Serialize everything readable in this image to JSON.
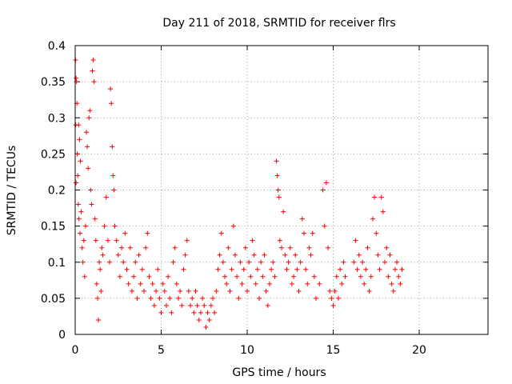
{
  "chart_data": {
    "type": "scatter",
    "title": "Day 211 of 2018, SRMTID for receiver flrs",
    "xlabel": "GPS time / hours",
    "ylabel": "SRMTID / TECUs",
    "xlim": [
      0,
      24
    ],
    "ylim": [
      0,
      0.4
    ],
    "xticks": [
      0,
      5,
      10,
      15,
      20
    ],
    "yticks": [
      0,
      0.05,
      0.1,
      0.15,
      0.2,
      0.25,
      0.3,
      0.35,
      0.4
    ],
    "xtick_labels": [
      "0",
      "5",
      "10",
      "15",
      "20"
    ],
    "ytick_labels": [
      "0",
      "0.05",
      "0.1",
      "0.15",
      "0.2",
      "0.25",
      "0.3",
      "0.35",
      "0.4"
    ],
    "grid": true,
    "marker": "+",
    "color": "#ff0000",
    "series": [
      {
        "points": [
          [
            0.02,
            0.38
          ],
          [
            0.05,
            0.355
          ],
          [
            0.08,
            0.35
          ],
          [
            0.03,
            0.29
          ],
          [
            0.1,
            0.32
          ],
          [
            0.12,
            0.25
          ],
          [
            0.15,
            0.22
          ],
          [
            0.05,
            0.21
          ],
          [
            0.2,
            0.29
          ],
          [
            0.25,
            0.27
          ],
          [
            0.3,
            0.24
          ],
          [
            0.18,
            0.18
          ],
          [
            0.22,
            0.16
          ],
          [
            0.28,
            0.14
          ],
          [
            0.35,
            0.17
          ],
          [
            0.4,
            0.12
          ],
          [
            0.45,
            0.1
          ],
          [
            0.5,
            0.13
          ],
          [
            0.55,
            0.08
          ],
          [
            0.6,
            0.15
          ],
          [
            0.65,
            0.28
          ],
          [
            0.7,
            0.26
          ],
          [
            0.75,
            0.23
          ],
          [
            0.8,
            0.3
          ],
          [
            0.85,
            0.31
          ],
          [
            0.9,
            0.2
          ],
          [
            0.95,
            0.18
          ],
          [
            1.0,
            0.365
          ],
          [
            1.05,
            0.38
          ],
          [
            1.1,
            0.35
          ],
          [
            1.15,
            0.16
          ],
          [
            1.2,
            0.13
          ],
          [
            1.25,
            0.07
          ],
          [
            1.3,
            0.05
          ],
          [
            1.35,
            0.02
          ],
          [
            1.4,
            0.1
          ],
          [
            1.45,
            0.09
          ],
          [
            1.5,
            0.06
          ],
          [
            1.55,
            0.12
          ],
          [
            1.6,
            0.11
          ],
          [
            1.7,
            0.15
          ],
          [
            1.8,
            0.19
          ],
          [
            1.9,
            0.13
          ],
          [
            2.0,
            0.1
          ],
          [
            2.05,
            0.34
          ],
          [
            2.1,
            0.32
          ],
          [
            2.15,
            0.26
          ],
          [
            2.2,
            0.22
          ],
          [
            2.25,
            0.2
          ],
          [
            2.3,
            0.15
          ],
          [
            2.4,
            0.13
          ],
          [
            2.5,
            0.11
          ],
          [
            2.6,
            0.08
          ],
          [
            2.7,
            0.12
          ],
          [
            2.8,
            0.1
          ],
          [
            2.9,
            0.14
          ],
          [
            3.0,
            0.09
          ],
          [
            3.1,
            0.07
          ],
          [
            3.2,
            0.12
          ],
          [
            3.3,
            0.06
          ],
          [
            3.4,
            0.08
          ],
          [
            3.5,
            0.1
          ],
          [
            3.6,
            0.05
          ],
          [
            3.7,
            0.11
          ],
          [
            3.8,
            0.07
          ],
          [
            3.9,
            0.09
          ],
          [
            4.0,
            0.06
          ],
          [
            4.1,
            0.12
          ],
          [
            4.2,
            0.14
          ],
          [
            4.3,
            0.08
          ],
          [
            4.4,
            0.05
          ],
          [
            4.5,
            0.07
          ],
          [
            4.6,
            0.04
          ],
          [
            4.7,
            0.06
          ],
          [
            4.8,
            0.09
          ],
          [
            4.9,
            0.05
          ],
          [
            5.0,
            0.03
          ],
          [
            5.1,
            0.07
          ],
          [
            5.2,
            0.06
          ],
          [
            5.3,
            0.04
          ],
          [
            5.4,
            0.08
          ],
          [
            5.5,
            0.05
          ],
          [
            5.6,
            0.03
          ],
          [
            5.7,
            0.1
          ],
          [
            5.8,
            0.12
          ],
          [
            5.9,
            0.07
          ],
          [
            6.0,
            0.05
          ],
          [
            6.1,
            0.06
          ],
          [
            6.2,
            0.04
          ],
          [
            6.3,
            0.09
          ],
          [
            6.4,
            0.11
          ],
          [
            6.5,
            0.13
          ],
          [
            6.6,
            0.06
          ],
          [
            6.7,
            0.04
          ],
          [
            6.8,
            0.05
          ],
          [
            6.9,
            0.03
          ],
          [
            7.0,
            0.06
          ],
          [
            7.1,
            0.04
          ],
          [
            7.2,
            0.02
          ],
          [
            7.3,
            0.03
          ],
          [
            7.4,
            0.05
          ],
          [
            7.5,
            0.04
          ],
          [
            7.6,
            0.01
          ],
          [
            7.7,
            0.03
          ],
          [
            7.8,
            0.02
          ],
          [
            7.9,
            0.04
          ],
          [
            8.0,
            0.05
          ],
          [
            8.1,
            0.03
          ],
          [
            8.2,
            0.06
          ],
          [
            8.3,
            0.09
          ],
          [
            8.4,
            0.11
          ],
          [
            8.5,
            0.14
          ],
          [
            8.6,
            0.1
          ],
          [
            8.7,
            0.08
          ],
          [
            8.8,
            0.07
          ],
          [
            8.9,
            0.12
          ],
          [
            9.0,
            0.06
          ],
          [
            9.1,
            0.09
          ],
          [
            9.2,
            0.15
          ],
          [
            9.3,
            0.11
          ],
          [
            9.4,
            0.08
          ],
          [
            9.5,
            0.05
          ],
          [
            9.6,
            0.1
          ],
          [
            9.7,
            0.07
          ],
          [
            9.8,
            0.09
          ],
          [
            9.9,
            0.12
          ],
          [
            10.0,
            0.06
          ],
          [
            10.1,
            0.1
          ],
          [
            10.2,
            0.08
          ],
          [
            10.3,
            0.13
          ],
          [
            10.4,
            0.11
          ],
          [
            10.5,
            0.07
          ],
          [
            10.6,
            0.09
          ],
          [
            10.7,
            0.05
          ],
          [
            10.8,
            0.1
          ],
          [
            10.9,
            0.08
          ],
          [
            11.0,
            0.11
          ],
          [
            11.1,
            0.06
          ],
          [
            11.2,
            0.04
          ],
          [
            11.3,
            0.07
          ],
          [
            11.4,
            0.09
          ],
          [
            11.5,
            0.1
          ],
          [
            11.6,
            0.08
          ],
          [
            11.7,
            0.24
          ],
          [
            11.75,
            0.22
          ],
          [
            11.8,
            0.2
          ],
          [
            11.85,
            0.19
          ],
          [
            11.9,
            0.13
          ],
          [
            12.0,
            0.12
          ],
          [
            12.1,
            0.17
          ],
          [
            12.2,
            0.11
          ],
          [
            12.3,
            0.09
          ],
          [
            12.4,
            0.1
          ],
          [
            12.5,
            0.12
          ],
          [
            12.6,
            0.07
          ],
          [
            12.7,
            0.08
          ],
          [
            12.8,
            0.11
          ],
          [
            12.9,
            0.09
          ],
          [
            13.0,
            0.06
          ],
          [
            13.1,
            0.1
          ],
          [
            13.2,
            0.16
          ],
          [
            13.3,
            0.14
          ],
          [
            13.4,
            0.09
          ],
          [
            13.5,
            0.07
          ],
          [
            13.6,
            0.12
          ],
          [
            13.7,
            0.11
          ],
          [
            13.8,
            0.14
          ],
          [
            13.9,
            0.08
          ],
          [
            14.0,
            0.05
          ],
          [
            14.2,
            0.07
          ],
          [
            14.4,
            0.2
          ],
          [
            14.5,
            0.15
          ],
          [
            14.6,
            0.21
          ],
          [
            14.7,
            0.12
          ],
          [
            14.8,
            0.06
          ],
          [
            14.9,
            0.05
          ],
          [
            15.0,
            0.04
          ],
          [
            15.1,
            0.06
          ],
          [
            15.2,
            0.08
          ],
          [
            15.3,
            0.05
          ],
          [
            15.4,
            0.09
          ],
          [
            15.5,
            0.07
          ],
          [
            15.6,
            0.1
          ],
          [
            15.7,
            0.08
          ],
          [
            16.2,
            0.1
          ],
          [
            16.3,
            0.13
          ],
          [
            16.4,
            0.09
          ],
          [
            16.5,
            0.11
          ],
          [
            16.6,
            0.08
          ],
          [
            16.7,
            0.1
          ],
          [
            16.8,
            0.07
          ],
          [
            16.9,
            0.09
          ],
          [
            17.0,
            0.12
          ],
          [
            17.1,
            0.06
          ],
          [
            17.2,
            0.08
          ],
          [
            17.3,
            0.16
          ],
          [
            17.4,
            0.19
          ],
          [
            17.5,
            0.14
          ],
          [
            17.6,
            0.11
          ],
          [
            17.7,
            0.09
          ],
          [
            17.8,
            0.19
          ],
          [
            17.9,
            0.17
          ],
          [
            18.0,
            0.1
          ],
          [
            18.1,
            0.12
          ],
          [
            18.2,
            0.08
          ],
          [
            18.3,
            0.11
          ],
          [
            18.4,
            0.07
          ],
          [
            18.5,
            0.06
          ],
          [
            18.6,
            0.09
          ],
          [
            18.7,
            0.1
          ],
          [
            18.8,
            0.08
          ],
          [
            18.9,
            0.07
          ],
          [
            19.0,
            0.09
          ]
        ]
      }
    ]
  }
}
